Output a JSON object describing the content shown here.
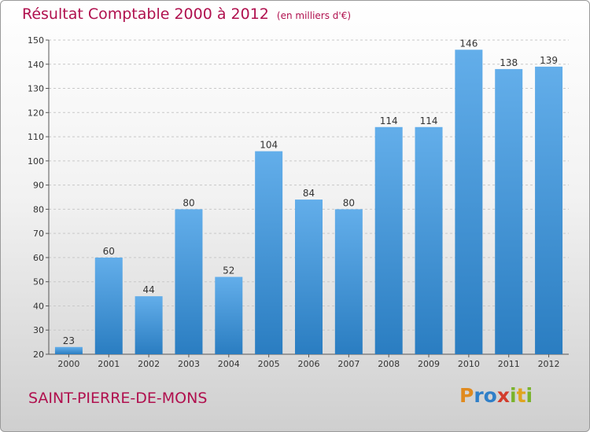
{
  "header": {
    "title": "Résultat Comptable 2000 à 2012",
    "subtitle": "(en milliers d'€)"
  },
  "footer": {
    "commune": "SAINT-PIERRE-DE-MONS",
    "logo_letters": [
      "P",
      "r",
      "o",
      "x",
      "i",
      "t",
      "i"
    ]
  },
  "colors": {
    "bar_top": "#63aeea",
    "bar_bottom": "#2a7dc1",
    "title": "#b0104e"
  },
  "chart_data": {
    "type": "bar",
    "title": "Résultat Comptable 2000 à 2012",
    "subtitle": "(en milliers d'€)",
    "categories": [
      "2000",
      "2001",
      "2002",
      "2003",
      "2004",
      "2005",
      "2006",
      "2007",
      "2008",
      "2009",
      "2010",
      "2011",
      "2012"
    ],
    "values": [
      23,
      60,
      44,
      80,
      52,
      104,
      84,
      80,
      114,
      114,
      146,
      138,
      139
    ],
    "yticks": [
      20,
      30,
      40,
      50,
      60,
      70,
      80,
      90,
      100,
      110,
      120,
      130,
      140,
      150
    ],
    "ylim": [
      20,
      150
    ],
    "xlabel": "",
    "ylabel": "",
    "grid": true
  }
}
